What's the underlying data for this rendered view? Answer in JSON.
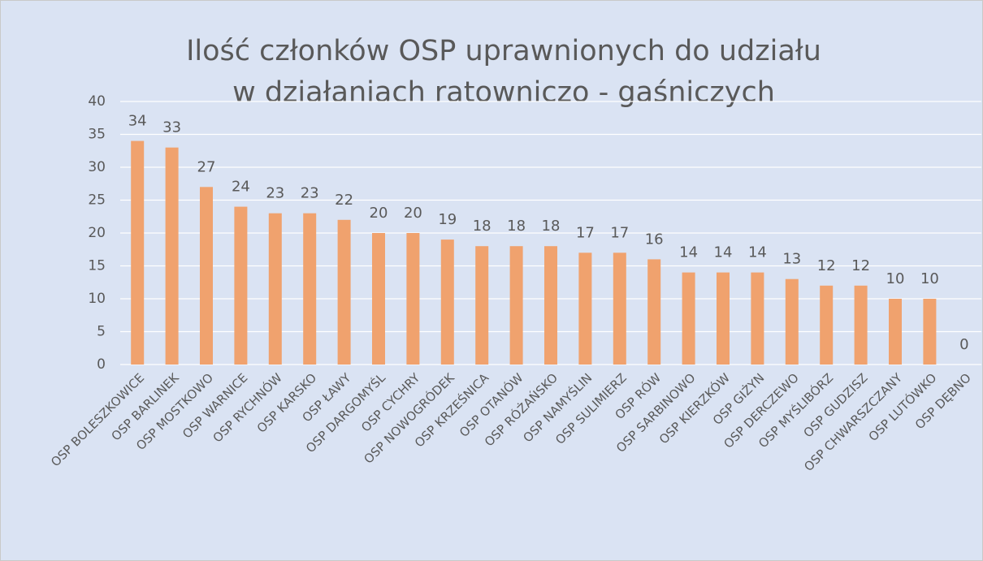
{
  "chart_data": {
    "type": "bar",
    "title": [
      "Ilość członków OSP uprawnionych do udziału",
      "w działaniach ratowniczo - gaśniczych"
    ],
    "categories": [
      "OSP BOLESZKOWICE",
      "OSP BARLINEK",
      "OSP MOSTKOWO",
      "OSP WARNICE",
      "OSP RYCHNÓW",
      "OSP KARSKO",
      "OSP ŁAWY",
      "OSP DARGOMYŚL",
      "OSP CYCHRY",
      "OSP NOWOGRÓDEK",
      "OSP KRZEŚNICA",
      "OSP OTANÓW",
      "OSP RÓŻAŃSKO",
      "OSP NAMYŚLIN",
      "OSP SULIMIERZ",
      "OSP RÓW",
      "OSP SARBINOWO",
      "OSP KIERZKÓW",
      "OSP GIŻYN",
      "OSP DERCZEWO",
      "OSP MYŚLIBÓRZ",
      "OSP GUDZISZ",
      "OSP CHWARSZCZANY",
      "OSP LUTÓWKO",
      "OSP DĘBNO"
    ],
    "values": [
      34,
      33,
      27,
      24,
      23,
      23,
      22,
      20,
      20,
      19,
      18,
      18,
      18,
      17,
      17,
      16,
      14,
      14,
      14,
      13,
      12,
      12,
      10,
      10,
      0
    ],
    "color": "#f0a26e",
    "ylim": [
      0,
      40
    ],
    "yticks": [
      0,
      5,
      10,
      15,
      20,
      25,
      30,
      35,
      40
    ],
    "grid": true
  }
}
